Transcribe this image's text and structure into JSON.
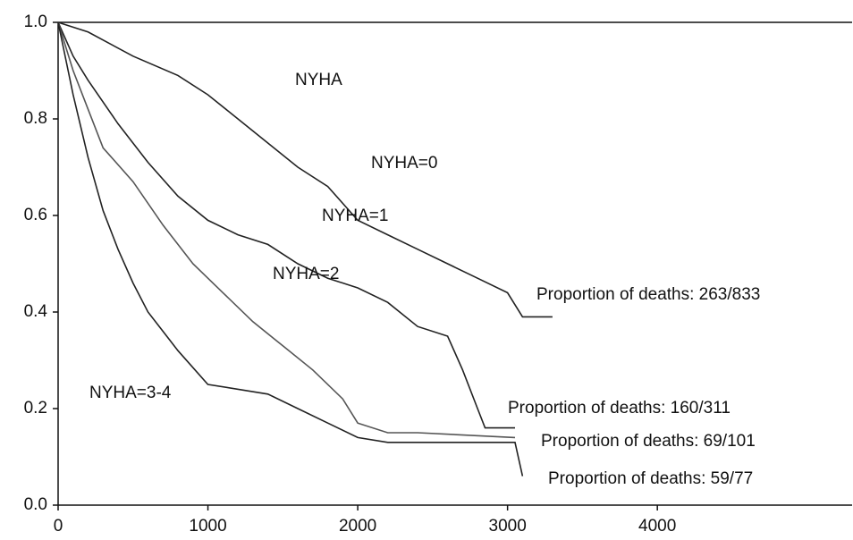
{
  "chart_data": {
    "type": "line",
    "xlim": [
      0,
      5300
    ],
    "ylim": [
      0,
      1
    ],
    "xticks": [
      0,
      1000,
      2000,
      3000,
      4000
    ],
    "yticks": [
      {
        "value": 0,
        "label": "0.0"
      },
      0.2,
      0.4,
      0.6,
      0.8,
      {
        "value": 1,
        "label": "1.0"
      }
    ],
    "annotations": [
      "NYHA",
      "NYHA=0",
      "NYHA=1",
      "NYHA=2",
      "NYHA=3-4",
      "Proportion of deaths: 263/833",
      "Proportion of deaths: 160/311",
      "Proportion of deaths: 69/101",
      "Proportion of deaths: 59/77"
    ],
    "series": [
      {
        "color": "#222222",
        "x": [
          0,
          200,
          500,
          800,
          1000,
          1200,
          1400,
          1600,
          1800,
          2000,
          2200,
          2400,
          2600,
          2800,
          3000,
          3100,
          3300
        ],
        "values": [
          1.0,
          0.98,
          0.93,
          0.89,
          0.85,
          0.8,
          0.75,
          0.7,
          0.66,
          0.59,
          0.56,
          0.53,
          0.5,
          0.47,
          0.44,
          0.39,
          0.39
        ]
      },
      {
        "color": "#222222",
        "x": [
          0,
          100,
          200,
          400,
          600,
          800,
          1000,
          1200,
          1400,
          1600,
          1800,
          2000,
          2200,
          2400,
          2600,
          2700,
          2800,
          2850,
          3050
        ],
        "values": [
          1.0,
          0.93,
          0.88,
          0.79,
          0.71,
          0.64,
          0.59,
          0.56,
          0.54,
          0.5,
          0.47,
          0.45,
          0.42,
          0.37,
          0.35,
          0.28,
          0.2,
          0.16,
          0.16
        ]
      },
      {
        "color": "#555555",
        "x": [
          0,
          100,
          200,
          300,
          500,
          700,
          900,
          1100,
          1300,
          1500,
          1700,
          1900,
          2000,
          2200,
          2400,
          3050
        ],
        "values": [
          1.0,
          0.9,
          0.82,
          0.74,
          0.67,
          0.58,
          0.5,
          0.44,
          0.38,
          0.33,
          0.28,
          0.22,
          0.17,
          0.15,
          0.15,
          0.14
        ]
      },
      {
        "color": "#222222",
        "x": [
          0,
          100,
          200,
          300,
          400,
          500,
          600,
          700,
          800,
          1000,
          1400,
          1600,
          1800,
          2000,
          2200,
          3050,
          3100
        ],
        "values": [
          1.0,
          0.85,
          0.72,
          0.61,
          0.53,
          0.46,
          0.4,
          0.36,
          0.32,
          0.25,
          0.23,
          0.2,
          0.17,
          0.14,
          0.13,
          0.13,
          0.06
        ]
      }
    ]
  }
}
